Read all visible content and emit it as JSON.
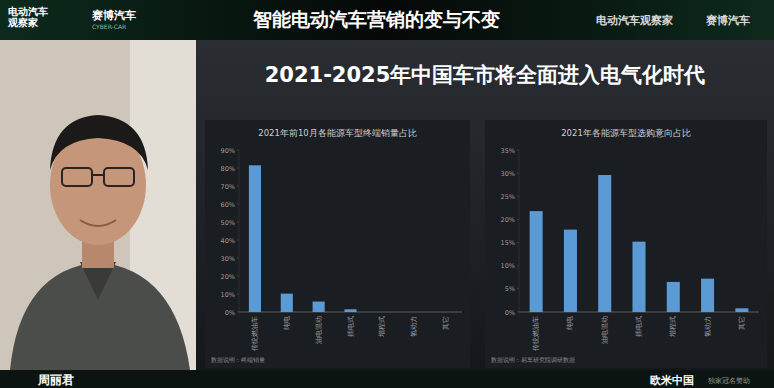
{
  "header": {
    "title": "智能电动汽车营销的变与不变",
    "left_logos": {
      "brand_lines": [
        "电动汽车",
        "观察家"
      ],
      "partner": "赛博汽车",
      "partner_sub": "CYBER-CAR"
    },
    "right_logos": {
      "brand": "电动汽车观察家",
      "partner": "赛博汽车"
    }
  },
  "slide": {
    "title": "2021-2025年中国车市将全面进入电气化时代"
  },
  "speaker": {
    "name": "周丽君"
  },
  "footer": {
    "sponsor": "欧米中国",
    "sponsor_note": "独家冠名赞助"
  },
  "chart_data": [
    {
      "type": "bar",
      "title": "2021年前10月各能源车型终端销量占比",
      "categories": [
        "传统燃油车",
        "纯电",
        "油电混动",
        "插电式",
        "增程式",
        "氢动力",
        "其它"
      ],
      "values": [
        81.5,
        10.2,
        5.8,
        1.5,
        0,
        0,
        0
      ],
      "color": "#5b9bd5",
      "ylim": [
        0,
        90
      ],
      "yticks": [
        {
          "value": 0,
          "label": "0%"
        },
        {
          "value": 10,
          "label": "10%"
        },
        {
          "value": 20,
          "label": "20%"
        },
        {
          "value": 30,
          "label": "30%"
        },
        {
          "value": 40,
          "label": "40%"
        },
        {
          "value": 50,
          "label": "50%"
        },
        {
          "value": 60,
          "label": "60%"
        },
        {
          "value": 70,
          "label": "70%"
        },
        {
          "value": 80,
          "label": "80%"
        },
        {
          "value": 90,
          "label": "90%"
        }
      ],
      "grid": false,
      "annotations": [
        "数据说明：终端销量"
      ]
    },
    {
      "type": "bar",
      "title": "2021年各能源车型选购意向占比",
      "categories": [
        "传统燃油车",
        "纯电",
        "油电混动",
        "插电式",
        "增程式",
        "氢动力",
        "其它"
      ],
      "values": [
        21.8,
        17.8,
        29.6,
        15.2,
        6.5,
        7.2,
        0.8
      ],
      "color": "#5b9bd5",
      "ylim": [
        0,
        35
      ],
      "yticks": [
        {
          "value": 0,
          "label": "0%"
        },
        {
          "value": 5,
          "label": "5%"
        },
        {
          "value": 10,
          "label": "10%"
        },
        {
          "value": 15,
          "label": "15%"
        },
        {
          "value": 20,
          "label": "20%"
        },
        {
          "value": 25,
          "label": "25%"
        },
        {
          "value": 30,
          "label": "30%"
        },
        {
          "value": 35,
          "label": "35%"
        }
      ],
      "grid": false,
      "annotations": [
        "数据说明：易车研究院调研数据"
      ]
    }
  ]
}
